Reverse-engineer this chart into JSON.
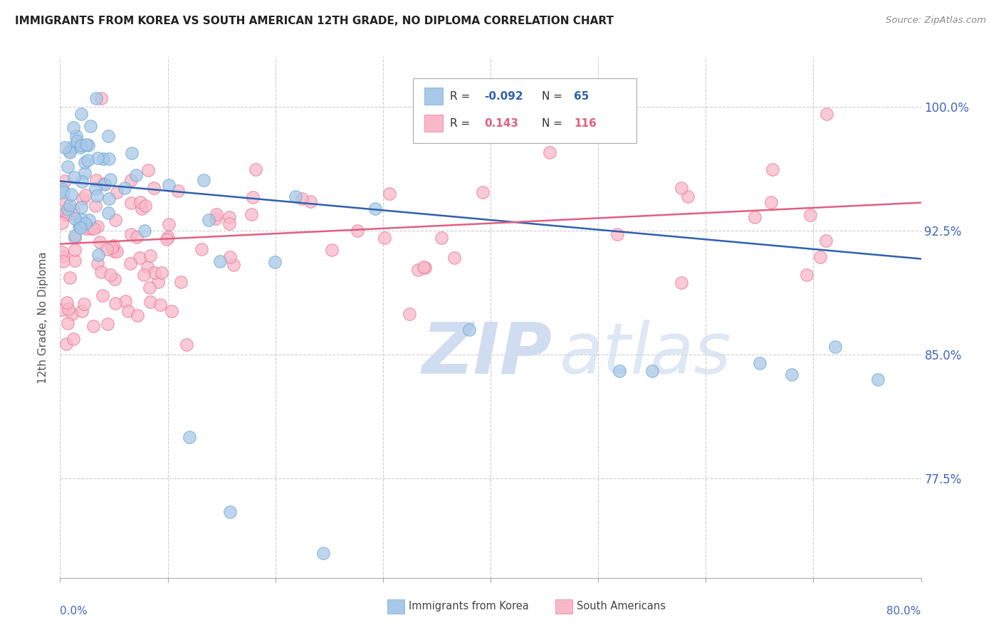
{
  "title": "IMMIGRANTS FROM KOREA VS SOUTH AMERICAN 12TH GRADE, NO DIPLOMA CORRELATION CHART",
  "source": "Source: ZipAtlas.com",
  "ylabel": "12th Grade, No Diploma",
  "ytick_labels": [
    "100.0%",
    "92.5%",
    "85.0%",
    "77.5%"
  ],
  "ytick_values": [
    1.0,
    0.925,
    0.85,
    0.775
  ],
  "xmin": 0.0,
  "xmax": 0.8,
  "ymin": 0.715,
  "ymax": 1.03,
  "korea_R": -0.092,
  "korea_N": 65,
  "sa_R": 0.143,
  "sa_N": 116,
  "korea_color": "#a8c8e8",
  "korea_edge": "#6aaad4",
  "sa_color": "#f8b8c8",
  "sa_edge": "#e87898",
  "korea_line_color": "#3060b0",
  "sa_line_color": "#e06080",
  "title_color": "#222222",
  "axis_label_color": "#4466bb",
  "watermark_color": "#d0ddf0",
  "korea_line_y0": 0.955,
  "korea_line_y1": 0.908,
  "sa_line_y0": 0.917,
  "sa_line_y1": 0.942
}
